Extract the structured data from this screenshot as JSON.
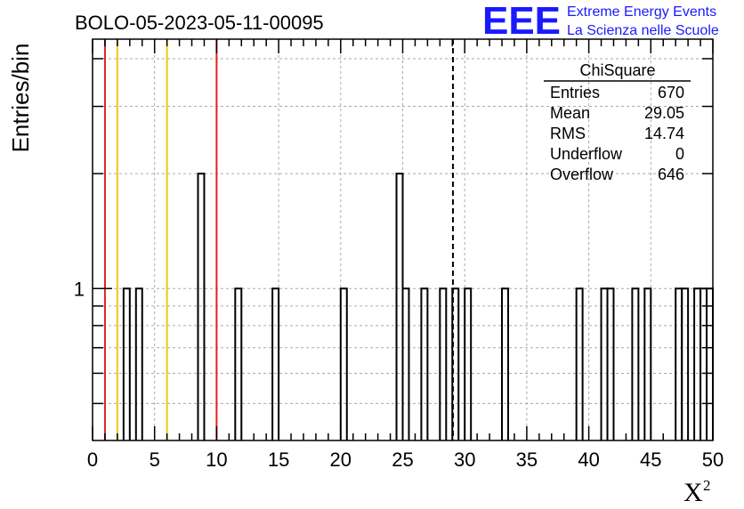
{
  "chart_data": {
    "type": "histogram",
    "title": "BOLO-05-2023-05-11-00095",
    "xlabel": "X",
    "xlabel_superscript": "2",
    "ylabel": "Entries/bin",
    "xlim": [
      0,
      50
    ],
    "ylim": [
      0.4,
      4.5
    ],
    "y_scale": "log",
    "x_ticks": [
      0,
      5,
      10,
      15,
      20,
      25,
      30,
      35,
      40,
      45,
      50
    ],
    "y_tick_labels": [
      {
        "value": 1,
        "label": "1"
      }
    ],
    "grid": true,
    "bin_width": 0.5,
    "bins": [
      {
        "x0": 2.5,
        "count": 1
      },
      {
        "x0": 3.5,
        "count": 1
      },
      {
        "x0": 8.5,
        "count": 2
      },
      {
        "x0": 11.5,
        "count": 1
      },
      {
        "x0": 14.5,
        "count": 1
      },
      {
        "x0": 20.0,
        "count": 1
      },
      {
        "x0": 24.5,
        "count": 2
      },
      {
        "x0": 25.0,
        "count": 1
      },
      {
        "x0": 26.5,
        "count": 1
      },
      {
        "x0": 28.0,
        "count": 1
      },
      {
        "x0": 29.0,
        "count": 1
      },
      {
        "x0": 30.0,
        "count": 1
      },
      {
        "x0": 33.0,
        "count": 1
      },
      {
        "x0": 39.0,
        "count": 1
      },
      {
        "x0": 41.0,
        "count": 1
      },
      {
        "x0": 41.5,
        "count": 1
      },
      {
        "x0": 43.5,
        "count": 1
      },
      {
        "x0": 44.5,
        "count": 1
      },
      {
        "x0": 47.0,
        "count": 1
      },
      {
        "x0": 47.5,
        "count": 1
      },
      {
        "x0": 48.5,
        "count": 1
      },
      {
        "x0": 49.0,
        "count": 1
      },
      {
        "x0": 49.5,
        "count": 1
      }
    ],
    "vertical_lines": [
      {
        "x": 1.0,
        "color": "#dd2222",
        "style": "solid"
      },
      {
        "x": 2.0,
        "color": "#f2c811",
        "style": "solid"
      },
      {
        "x": 6.0,
        "color": "#f2c811",
        "style": "solid"
      },
      {
        "x": 10.0,
        "color": "#dd2222",
        "style": "solid"
      },
      {
        "x": 29.05,
        "color": "#000000",
        "style": "dashed"
      }
    ]
  },
  "stats_box": {
    "title": "ChiSquare",
    "rows": [
      {
        "label": "Entries",
        "value": "670"
      },
      {
        "label": "Mean",
        "value": "29.05"
      },
      {
        "label": "RMS",
        "value": "14.74"
      },
      {
        "label": "Underflow",
        "value": "0"
      },
      {
        "label": "Overflow",
        "value": "646"
      }
    ]
  },
  "logo": {
    "big": "EEE",
    "line1": "Extreme Energy Events",
    "line2": "La Scienza nelle Scuole",
    "color": "#1a1aff"
  }
}
